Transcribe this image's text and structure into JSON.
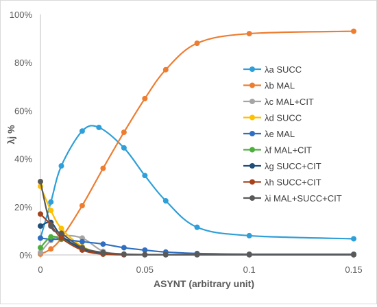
{
  "chart_data": {
    "type": "line",
    "title": "",
    "xlabel": "ASYNT (arbitrary unit)",
    "ylabel": "λj %",
    "xlim": [
      0,
      0.15
    ],
    "ylim": [
      0,
      100
    ],
    "x_ticks": [
      "0",
      "0.05",
      "0.1",
      "0.15"
    ],
    "y_ticks": [
      "0%",
      "20%",
      "40%",
      "60%",
      "80%",
      "100%"
    ],
    "grid": false,
    "legend_position": "right",
    "series": [
      {
        "name": "λa SUCC",
        "color": "#2e9fd8",
        "x": [
          0,
          0.005,
          0.01,
          0.02,
          0.028,
          0.04,
          0.05,
          0.06,
          0.075,
          0.1,
          0.15
        ],
        "y": [
          7,
          22,
          37,
          51.5,
          53,
          44.5,
          33,
          22.5,
          11.5,
          8,
          6.7
        ]
      },
      {
        "name": "λb MAL",
        "color": "#ed7d31",
        "x": [
          0,
          0.005,
          0.01,
          0.02,
          0.03,
          0.04,
          0.05,
          0.06,
          0.075,
          0.1,
          0.15
        ],
        "y": [
          0.3,
          2.5,
          7,
          20.5,
          36,
          51,
          65,
          77,
          88,
          92,
          93
        ]
      },
      {
        "name": "λc MAL+CIT",
        "color": "#a5a5a5",
        "x": [
          0,
          0.005,
          0.01,
          0.02,
          0.03,
          0.04,
          0.05,
          0.06,
          0.075,
          0.1,
          0.15
        ],
        "y": [
          1,
          6,
          8,
          7,
          1.5,
          0.4,
          0.2,
          0.1,
          0.1,
          0.1,
          0.1
        ]
      },
      {
        "name": "λd SUCC",
        "color": "#ffc000",
        "x": [
          0,
          0.005,
          0.01,
          0.02,
          0.03,
          0.04,
          0.05,
          0.06,
          0.075,
          0.1,
          0.15
        ],
        "y": [
          28.5,
          18.5,
          11,
          3.5,
          0.8,
          0.2,
          0.1,
          0.1,
          0.1,
          0.1,
          0.1
        ]
      },
      {
        "name": "λe MAL",
        "color": "#2f6ec0",
        "x": [
          0,
          0.005,
          0.01,
          0.02,
          0.03,
          0.04,
          0.05,
          0.06,
          0.075,
          0.1,
          0.15
        ],
        "y": [
          7,
          6.5,
          6.5,
          5.5,
          4.5,
          3,
          2,
          1.2,
          0.6,
          0.3,
          0.3
        ]
      },
      {
        "name": "λf MAL+CIT",
        "color": "#4caf3c",
        "x": [
          0,
          0.005,
          0.01,
          0.02,
          0.03,
          0.04,
          0.05,
          0.06,
          0.075,
          0.1,
          0.15
        ],
        "y": [
          3,
          7.5,
          6.5,
          3,
          0.6,
          0.1,
          0.1,
          0.1,
          0.1,
          0.1,
          0.1
        ]
      },
      {
        "name": "λg SUCC+CIT",
        "color": "#1f4e79",
        "x": [
          0,
          0.005,
          0.01,
          0.02,
          0.03,
          0.04,
          0.05,
          0.06,
          0.075,
          0.1,
          0.15
        ],
        "y": [
          12,
          13.5,
          8,
          2.5,
          0.5,
          0.1,
          0.1,
          0.1,
          0.1,
          0.1,
          0.1
        ]
      },
      {
        "name": "λh SUCC+CIT",
        "color": "#a5421c",
        "x": [
          0,
          0.005,
          0.01,
          0.02,
          0.03,
          0.04,
          0.05,
          0.06,
          0.075,
          0.1,
          0.15
        ],
        "y": [
          17,
          12.5,
          7,
          2,
          0.3,
          0.1,
          0.1,
          0.1,
          0.1,
          0.1,
          0.1
        ]
      },
      {
        "name": "λi MAL+SUCC+CIT",
        "color": "#595959",
        "x": [
          0,
          0.005,
          0.01,
          0.02,
          0.03,
          0.04,
          0.05,
          0.06,
          0.075,
          0.1,
          0.15
        ],
        "y": [
          30.5,
          12,
          9,
          3,
          1,
          0.3,
          0.1,
          0.1,
          0.1,
          0.1,
          0.1
        ]
      }
    ]
  }
}
